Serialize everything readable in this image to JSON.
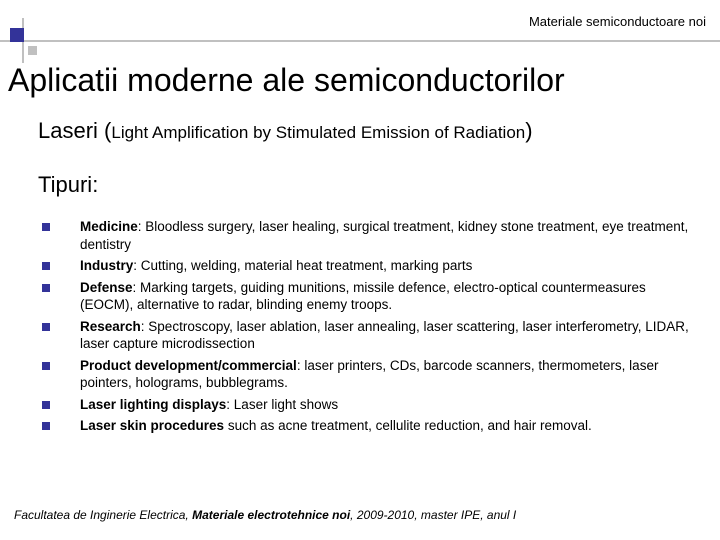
{
  "header": {
    "text": "Materiale semiconductoare noi"
  },
  "title": "Aplicatii moderne ale semiconductorilor",
  "subtitle": {
    "prefix": "Laseri (",
    "definition": "Light Amplification by Stimulated Emission of Radiation",
    "suffix": ")"
  },
  "section_label": "Tipuri:",
  "items": [
    {
      "bold": "Medicine",
      "rest": ": Bloodless surgery, laser healing, surgical treatment, kidney stone treatment, eye treatment, dentistry"
    },
    {
      "bold": "Industry",
      "rest": ": Cutting, welding, material heat treatment, marking parts"
    },
    {
      "bold": "Defense",
      "rest": ": Marking targets, guiding munitions, missile defence, electro-optical countermeasures (EOCM), alternative to radar, blinding enemy troops."
    },
    {
      "bold": "Research",
      "rest": ": Spectroscopy, laser ablation, laser annealing, laser scattering, laser interferometry, LIDAR, laser capture microdissection"
    },
    {
      "bold": "Product development/commercial",
      "rest": ": laser printers, CDs, barcode scanners, thermometers, laser pointers, holograms, bubblegrams."
    },
    {
      "bold": "Laser lighting displays",
      "rest": ": Laser light shows"
    },
    {
      "bold": "Laser skin procedures",
      "rest": " such as acne treatment, cellulite reduction, and hair removal."
    }
  ],
  "footer": {
    "prefix": "Facultatea de Inginerie Electrica, ",
    "emphasis": "Materiale electrotehnice noi",
    "suffix": ", 2009-2010, master IPE, anul I"
  },
  "colors": {
    "accent": "#333399",
    "line": "#c0c0c0",
    "text": "#000000",
    "background": "#ffffff"
  }
}
